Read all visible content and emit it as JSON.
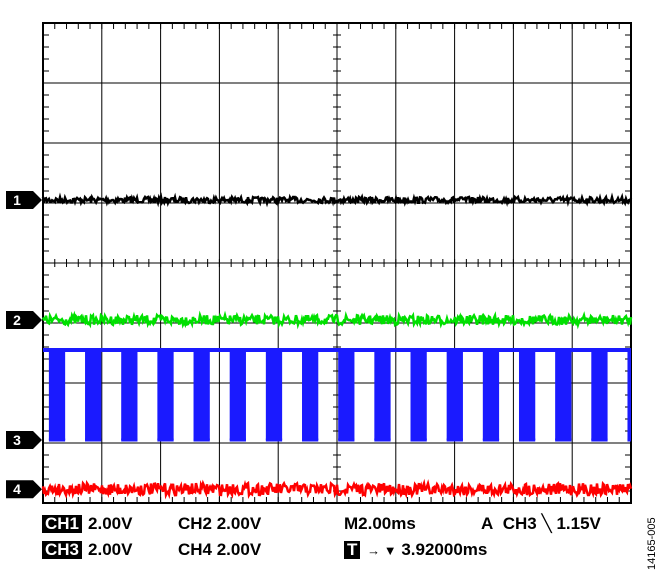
{
  "chart_data": {
    "type": "line",
    "title": "",
    "grid": true,
    "divisions": {
      "horizontal": 10,
      "vertical": 8
    },
    "time_per_div": "2.00ms",
    "series": [
      {
        "name": "1",
        "color": "#000000",
        "kind": "flat",
        "level_div": 2.95,
        "noise_div": 0.05
      },
      {
        "name": "2",
        "color": "#00e000",
        "kind": "flat",
        "level_div": 4.95,
        "noise_div": 0.08
      },
      {
        "name": "3",
        "color": "#1a1aff",
        "kind": "pulse",
        "level_div": 6.95,
        "high_div": 5.45,
        "low_div": 6.95,
        "period_div": 0.615,
        "low_fraction": 0.45,
        "first_edge_div": 0.1
      },
      {
        "name": "4",
        "color": "#ff0000",
        "kind": "flat",
        "level_div": 7.77,
        "noise_div": 0.1
      }
    ],
    "channel_markers": [
      "1",
      "2",
      "3",
      "4"
    ],
    "readouts": {
      "ch1": {
        "badge": "CH1",
        "value": "2.00V"
      },
      "ch2": "CH2 2.00V",
      "ch3": {
        "badge": "CH3",
        "value": "2.00V"
      },
      "ch4": "CH4 2.00V",
      "timebase": "M2.00ms",
      "trigger": {
        "mode": "A",
        "source": "CH3",
        "slope_glyph": "╲",
        "level": "1.15V"
      },
      "trigger_position": {
        "badge": "T",
        "glyph": "→ ▼",
        "value": "3.92000ms"
      }
    },
    "figure_id": "14165-005"
  }
}
